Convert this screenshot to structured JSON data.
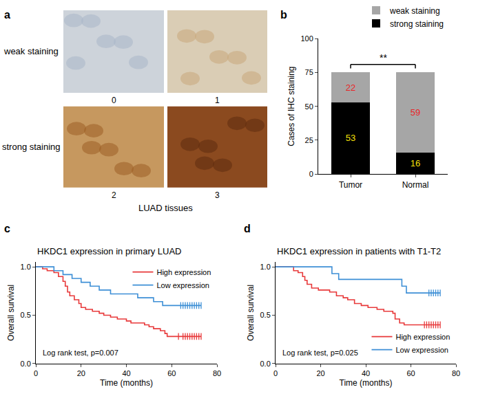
{
  "panel_a": {
    "label": "a",
    "row_labels": [
      "weak staining",
      "strong staining"
    ],
    "tiles": [
      "0",
      "1",
      "2",
      "3"
    ],
    "caption": "LUAD tissues"
  },
  "chart_data": [
    {
      "panel": "b",
      "type": "bar",
      "stacked": true,
      "categories": [
        "Tumor",
        "Normal"
      ],
      "series": [
        {
          "name": "strong staining",
          "color": "#000000",
          "values": [
            53,
            16
          ]
        },
        {
          "name": "weak staining",
          "color": "#a6a6a6",
          "values": [
            22,
            59
          ]
        }
      ],
      "y_label": "Cases of IHC staining",
      "ylim": [
        0,
        100
      ],
      "yticks": [
        0,
        25,
        50,
        75,
        100
      ],
      "data_labels": true,
      "legend": "upper right",
      "annotation": "**"
    },
    {
      "panel": "c",
      "type": "line",
      "title": "HKDC1 expression in primary LUAD",
      "x_label": "Time (months)",
      "y_label": "Overall survival",
      "xlim": [
        0,
        80
      ],
      "xticks": [
        0,
        20,
        40,
        60,
        80
      ],
      "ylim": [
        0,
        1.05
      ],
      "yticks": [
        {
          "value": 0,
          "label": "0.0"
        },
        {
          "value": 0.5,
          "label": "0.5"
        },
        {
          "value": 1,
          "label": "1.0"
        }
      ],
      "line_style": "step",
      "legend": "upper right",
      "annotation": "Log rank test, p=0.007",
      "series": [
        {
          "name": "High expression",
          "color": "#e8393a",
          "x": [
            0,
            3,
            5,
            8,
            10,
            12,
            13,
            14,
            15,
            17,
            19,
            20,
            22,
            25,
            28,
            30,
            33,
            36,
            40,
            42,
            48,
            50,
            52,
            55,
            57,
            58,
            73
          ],
          "values": [
            1,
            0.98,
            0.96,
            0.94,
            0.9,
            0.85,
            0.8,
            0.74,
            0.7,
            0.66,
            0.62,
            0.58,
            0.56,
            0.54,
            0.52,
            0.5,
            0.48,
            0.46,
            0.44,
            0.42,
            0.4,
            0.38,
            0.36,
            0.34,
            0.31,
            0.28,
            0.28
          ],
          "censored": [
            63,
            65,
            66,
            67,
            68,
            69,
            70,
            71,
            72,
            73
          ]
        },
        {
          "name": "Low expression",
          "color": "#3d8fd6",
          "x": [
            0,
            8,
            12,
            16,
            20,
            24,
            28,
            33,
            45,
            52,
            56,
            73
          ],
          "values": [
            1,
            0.96,
            0.92,
            0.88,
            0.84,
            0.8,
            0.76,
            0.72,
            0.68,
            0.64,
            0.6,
            0.6
          ],
          "censored": [
            64,
            65,
            66,
            67,
            68,
            69,
            70,
            71,
            72,
            73
          ]
        }
      ]
    },
    {
      "panel": "d",
      "type": "line",
      "title": "HKDC1 expression in patients with T1-T2",
      "x_label": "Time (months)",
      "y_label": "Overall survival",
      "xlim": [
        0,
        80
      ],
      "xticks": [
        0,
        20,
        40,
        60,
        80
      ],
      "ylim": [
        0,
        1.05
      ],
      "yticks": [
        {
          "value": 0,
          "label": "0.0"
        },
        {
          "value": 0.5,
          "label": "0.5"
        },
        {
          "value": 1,
          "label": "1.0"
        }
      ],
      "line_style": "step",
      "legend": "lower right",
      "annotation": "Log rank test, p=0.025",
      "series": [
        {
          "name": "High expression",
          "color": "#e8393a",
          "x": [
            0,
            8,
            10,
            12,
            13,
            14,
            16,
            19,
            24,
            27,
            30,
            32,
            35,
            38,
            41,
            45,
            48,
            52,
            53,
            55,
            57,
            73
          ],
          "values": [
            1,
            0.96,
            0.94,
            0.9,
            0.86,
            0.82,
            0.78,
            0.76,
            0.74,
            0.7,
            0.68,
            0.66,
            0.62,
            0.6,
            0.58,
            0.56,
            0.54,
            0.52,
            0.46,
            0.42,
            0.4,
            0.4
          ],
          "censored": [
            66,
            67,
            68,
            69,
            70,
            71,
            72,
            73
          ]
        },
        {
          "name": "Low expression",
          "color": "#3d8fd6",
          "x": [
            0,
            25,
            28,
            56,
            58,
            73
          ],
          "values": [
            1,
            0.93,
            0.87,
            0.8,
            0.73,
            0.73
          ],
          "censored": [
            68,
            69,
            70,
            71,
            72,
            73
          ]
        }
      ]
    }
  ]
}
